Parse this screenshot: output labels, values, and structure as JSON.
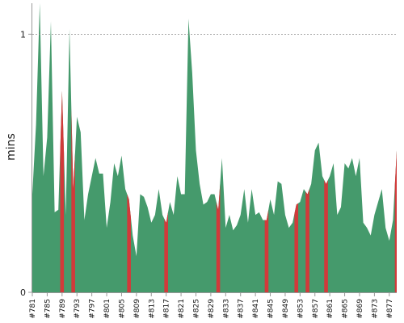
{
  "chart_data": {
    "type": "area",
    "ylabel": "mins",
    "xlabel": "",
    "title": "",
    "ylim": [
      0,
      1.12
    ],
    "y_ticks": [
      0,
      1
    ],
    "y_tick_labels": [
      "0",
      "1"
    ],
    "reference_line": {
      "y": 1,
      "style": "dashed"
    },
    "x_tick_labels": [
      "#781",
      "#785",
      "#789",
      "#793",
      "#797",
      "#801",
      "#805",
      "#809",
      "#813",
      "#817",
      "#821",
      "#825",
      "#829",
      "#833",
      "#837",
      "#841",
      "#845",
      "#849",
      "#853",
      "#857",
      "#861",
      "#865",
      "#869",
      "#873",
      "#877"
    ],
    "x_start": 781,
    "x_end": 879,
    "colors": {
      "pass": "#459a6c",
      "fail": "#d13a3a",
      "grid": "#888888",
      "axis": "#999999"
    },
    "series": [
      {
        "status_values": [
          "pass",
          "pass",
          "pass",
          "pass",
          "pass",
          "pass",
          "pass",
          "pass",
          "fail",
          "pass",
          "pass",
          "fail",
          "pass",
          "pass",
          "pass",
          "pass",
          "pass",
          "pass",
          "pass",
          "pass",
          "pass",
          "pass",
          "pass",
          "pass",
          "pass",
          "pass",
          "fail",
          "pass",
          "pass",
          "pass",
          "pass",
          "pass",
          "pass",
          "pass",
          "pass",
          "pass",
          "fail",
          "pass",
          "pass",
          "pass",
          "pass",
          "pass",
          "pass",
          "pass",
          "pass",
          "pass",
          "pass",
          "pass",
          "pass",
          "pass",
          "fail",
          "pass",
          "pass",
          "pass",
          "pass",
          "pass",
          "pass",
          "pass",
          "pass",
          "pass",
          "pass",
          "pass",
          "pass",
          "fail",
          "pass",
          "pass",
          "pass",
          "pass",
          "pass",
          "pass",
          "pass",
          "fail",
          "pass",
          "pass",
          "fail",
          "pass",
          "pass",
          "pass",
          "pass",
          "fail",
          "pass",
          "pass",
          "pass",
          "pass",
          "pass",
          "pass",
          "pass",
          "pass",
          "pass",
          "pass",
          "pass",
          "pass",
          "pass",
          "pass",
          "pass",
          "pass",
          "pass",
          "pass",
          "fail"
        ],
        "points": [
          [
            781,
            0.38
          ],
          [
            782,
            0.65
          ],
          [
            783,
            1.12
          ],
          [
            784,
            0.45
          ],
          [
            785,
            0.6
          ],
          [
            786,
            1.05
          ],
          [
            787,
            0.31
          ],
          [
            788,
            0.32
          ],
          [
            789,
            0.78
          ],
          [
            790,
            0.3
          ],
          [
            791,
            1.02
          ],
          [
            792,
            0.4
          ],
          [
            793,
            0.68
          ],
          [
            794,
            0.62
          ],
          [
            795,
            0.28
          ],
          [
            796,
            0.38
          ],
          [
            797,
            0.45
          ],
          [
            798,
            0.52
          ],
          [
            799,
            0.46
          ],
          [
            800,
            0.46
          ],
          [
            801,
            0.25
          ],
          [
            802,
            0.35
          ],
          [
            803,
            0.5
          ],
          [
            804,
            0.45
          ],
          [
            805,
            0.53
          ],
          [
            806,
            0.4
          ],
          [
            807,
            0.36
          ],
          [
            808,
            0.22
          ],
          [
            809,
            0.14
          ],
          [
            810,
            0.38
          ],
          [
            811,
            0.37
          ],
          [
            812,
            0.33
          ],
          [
            813,
            0.27
          ],
          [
            814,
            0.3
          ],
          [
            815,
            0.4
          ],
          [
            816,
            0.3
          ],
          [
            817,
            0.27
          ],
          [
            818,
            0.35
          ],
          [
            819,
            0.3
          ],
          [
            820,
            0.45
          ],
          [
            821,
            0.38
          ],
          [
            822,
            0.38
          ],
          [
            823,
            1.06
          ],
          [
            824,
            0.85
          ],
          [
            825,
            0.55
          ],
          [
            826,
            0.42
          ],
          [
            827,
            0.34
          ],
          [
            828,
            0.35
          ],
          [
            829,
            0.38
          ],
          [
            830,
            0.38
          ],
          [
            831,
            0.32
          ],
          [
            832,
            0.52
          ],
          [
            833,
            0.25
          ],
          [
            834,
            0.3
          ],
          [
            835,
            0.24
          ],
          [
            836,
            0.26
          ],
          [
            837,
            0.3
          ],
          [
            838,
            0.4
          ],
          [
            839,
            0.27
          ],
          [
            840,
            0.4
          ],
          [
            841,
            0.3
          ],
          [
            842,
            0.31
          ],
          [
            843,
            0.28
          ],
          [
            844,
            0.28
          ],
          [
            845,
            0.36
          ],
          [
            846,
            0.3
          ],
          [
            847,
            0.43
          ],
          [
            848,
            0.42
          ],
          [
            849,
            0.3
          ],
          [
            850,
            0.25
          ],
          [
            851,
            0.27
          ],
          [
            852,
            0.34
          ],
          [
            853,
            0.35
          ],
          [
            854,
            0.4
          ],
          [
            855,
            0.38
          ],
          [
            856,
            0.42
          ],
          [
            857,
            0.55
          ],
          [
            858,
            0.58
          ],
          [
            859,
            0.45
          ],
          [
            860,
            0.42
          ],
          [
            861,
            0.45
          ],
          [
            862,
            0.5
          ],
          [
            863,
            0.3
          ],
          [
            864,
            0.33
          ],
          [
            865,
            0.5
          ],
          [
            866,
            0.48
          ],
          [
            867,
            0.52
          ],
          [
            868,
            0.45
          ],
          [
            869,
            0.52
          ],
          [
            870,
            0.27
          ],
          [
            871,
            0.25
          ],
          [
            872,
            0.22
          ],
          [
            873,
            0.3
          ],
          [
            874,
            0.35
          ],
          [
            875,
            0.4
          ],
          [
            876,
            0.25
          ],
          [
            877,
            0.2
          ],
          [
            878,
            0.28
          ],
          [
            879,
            0.55
          ]
        ]
      }
    ]
  }
}
